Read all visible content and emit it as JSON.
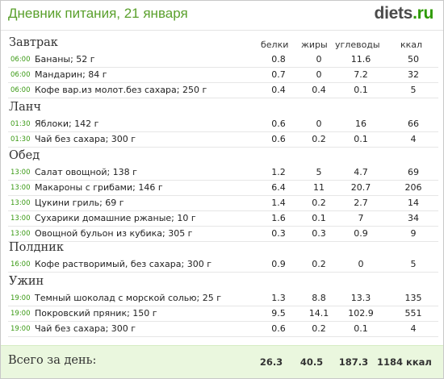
{
  "title": "Дневник питания, 21 января",
  "logo": {
    "part1": "diets",
    "part2": ".ru"
  },
  "columns": {
    "protein": "белки",
    "fat": "жиры",
    "carbs": "углеводы",
    "kcal": "ккал"
  },
  "meals": [
    {
      "name": "Завтрак",
      "items": [
        {
          "time": "06:00",
          "food": "Бананы; 52 г",
          "protein": "0.8",
          "fat": "0",
          "carbs": "11.6",
          "kcal": "50"
        },
        {
          "time": "06:00",
          "food": "Мандарин; 84 г",
          "protein": "0.7",
          "fat": "0",
          "carbs": "7.2",
          "kcal": "32"
        },
        {
          "time": "06:00",
          "food": "Кофе вар.из молот.без сахара; 250 г",
          "protein": "0.4",
          "fat": "0.4",
          "carbs": "0.1",
          "kcal": "5"
        }
      ]
    },
    {
      "name": "Ланч",
      "items": [
        {
          "time": "01:30",
          "food": "Яблоки; 142 г",
          "protein": "0.6",
          "fat": "0",
          "carbs": "16",
          "kcal": "66"
        },
        {
          "time": "01:30",
          "food": "Чай без сахара; 300 г",
          "protein": "0.6",
          "fat": "0.2",
          "carbs": "0.1",
          "kcal": "4"
        }
      ]
    },
    {
      "name": "Обед",
      "items": [
        {
          "time": "13:00",
          "food": "Салат овощной; 138 г",
          "protein": "1.2",
          "fat": "5",
          "carbs": "4.7",
          "kcal": "69"
        },
        {
          "time": "13:00",
          "food": "Макароны с грибами; 146 г",
          "protein": "6.4",
          "fat": "11",
          "carbs": "20.7",
          "kcal": "206"
        },
        {
          "time": "13:00",
          "food": "Цукини гриль; 69 г",
          "protein": "1.4",
          "fat": "0.2",
          "carbs": "2.7",
          "kcal": "14"
        },
        {
          "time": "13:00",
          "food": "Сухарики домашние ржаные; 10 г",
          "protein": "1.6",
          "fat": "0.1",
          "carbs": "7",
          "kcal": "34"
        },
        {
          "time": "13:00",
          "food": "Овощной бульон из кубика; 305 г",
          "protein": "0.3",
          "fat": "0.3",
          "carbs": "0.9",
          "kcal": "9"
        }
      ]
    },
    {
      "name": "Полдник",
      "items": [
        {
          "time": "16:00",
          "food": "Кофе растворимый, без сахара; 300 г",
          "protein": "0.9",
          "fat": "0.2",
          "carbs": "0",
          "kcal": "5"
        }
      ]
    },
    {
      "name": "Ужин",
      "items": [
        {
          "time": "19:00",
          "food": "Темный шоколад с морской солью; 25 г",
          "protein": "1.3",
          "fat": "8.8",
          "carbs": "13.3",
          "kcal": "135"
        },
        {
          "time": "19:00",
          "food": "Покровский пряник; 150 г",
          "protein": "9.5",
          "fat": "14.1",
          "carbs": "102.9",
          "kcal": "551"
        },
        {
          "time": "19:00",
          "food": "Чай без сахара; 300 г",
          "protein": "0.6",
          "fat": "0.2",
          "carbs": "0.1",
          "kcal": "4"
        }
      ]
    }
  ],
  "totals": {
    "label": "Всего за день:",
    "protein": "26.3",
    "fat": "40.5",
    "carbs": "187.3",
    "kcal": "1184 ккал"
  },
  "colors": {
    "title": "#5aa02c",
    "time": "#3b9a15",
    "footer_bg": "#eaf7de",
    "logo_accent": "#2d9a00"
  }
}
